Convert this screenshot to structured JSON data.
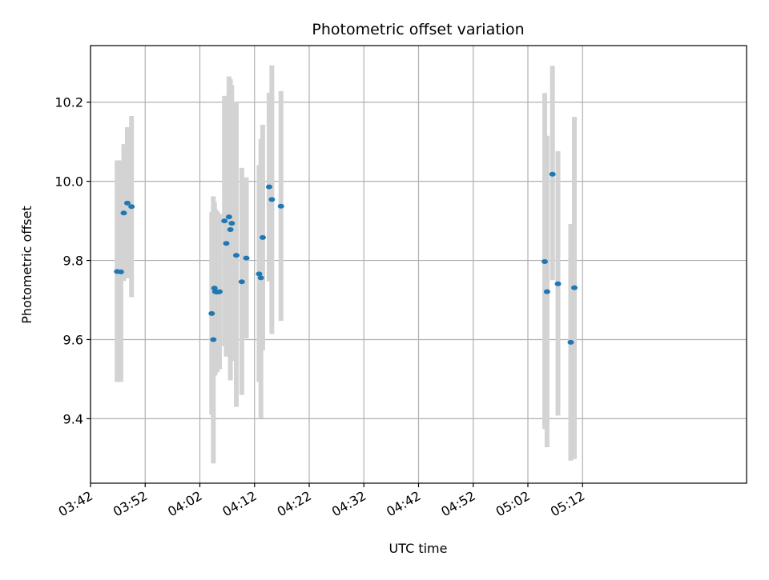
{
  "chart_data": {
    "type": "scatter",
    "title": "Photometric offset variation",
    "xlabel": "UTC time",
    "ylabel": "Photometric offset",
    "x_axis": {
      "type": "time",
      "range": [
        "03:42",
        "05:42"
      ],
      "ticks": [
        "03:42",
        "03:52",
        "04:02",
        "04:12",
        "04:22",
        "04:32",
        "04:42",
        "04:52",
        "05:02",
        "05:12"
      ]
    },
    "ylim": [
      9.237,
      10.343
    ],
    "y_ticks": [
      "9.4",
      "9.6",
      "9.8",
      "10.0",
      "10.2"
    ],
    "grid": true,
    "colors": {
      "marker": "#1f77b4",
      "errorbar": "#d3d3d3",
      "grid": "#b0b0b0"
    },
    "series": [
      {
        "points": [
          {
            "x": "03:46:52",
            "y": 9.772,
            "yerr_low": 9.493,
            "yerr_high": 10.053
          },
          {
            "x": "03:47:33",
            "y": 9.771,
            "yerr_low": 9.493,
            "yerr_high": 10.053
          },
          {
            "x": "03:48:05",
            "y": 9.92,
            "yerr_low": 9.748,
            "yerr_high": 10.094
          },
          {
            "x": "03:48:44",
            "y": 9.945,
            "yerr_low": 9.755,
            "yerr_high": 10.137
          },
          {
            "x": "03:49:30",
            "y": 9.936,
            "yerr_low": 9.707,
            "yerr_high": 10.165
          },
          {
            "x": "04:04:10",
            "y": 9.666,
            "yerr_low": 9.41,
            "yerr_high": 9.923
          },
          {
            "x": "04:04:28",
            "y": 9.6,
            "yerr_low": 9.287,
            "yerr_high": 9.962
          },
          {
            "x": "04:04:40",
            "y": 9.73,
            "yerr_low": 9.508,
            "yerr_high": 9.948
          },
          {
            "x": "04:04:50",
            "y": 9.721,
            "yerr_low": 9.512,
            "yerr_high": 9.93
          },
          {
            "x": "04:05:10",
            "y": 9.72,
            "yerr_low": 9.518,
            "yerr_high": 9.925
          },
          {
            "x": "04:05:35",
            "y": 9.721,
            "yerr_low": 9.525,
            "yerr_high": 9.918
          },
          {
            "x": "04:06:30",
            "y": 9.9,
            "yerr_low": 9.583,
            "yerr_high": 10.216
          },
          {
            "x": "04:06:50",
            "y": 9.843,
            "yerr_low": 9.557,
            "yerr_high": 10.13
          },
          {
            "x": "04:07:20",
            "y": 9.91,
            "yerr_low": 9.558,
            "yerr_high": 10.265
          },
          {
            "x": "04:07:35",
            "y": 9.878,
            "yerr_low": 9.497,
            "yerr_high": 10.258
          },
          {
            "x": "04:07:50",
            "y": 9.894,
            "yerr_low": 9.546,
            "yerr_high": 10.243
          },
          {
            "x": "04:08:40",
            "y": 9.813,
            "yerr_low": 9.43,
            "yerr_high": 10.201
          },
          {
            "x": "04:09:40",
            "y": 9.746,
            "yerr_low": 9.46,
            "yerr_high": 10.034
          },
          {
            "x": "04:10:30",
            "y": 9.806,
            "yerr_low": 9.603,
            "yerr_high": 10.01
          },
          {
            "x": "04:12:50",
            "y": 9.766,
            "yerr_low": 9.493,
            "yerr_high": 10.041
          },
          {
            "x": "04:13:10",
            "y": 9.756,
            "yerr_low": 9.402,
            "yerr_high": 10.107
          },
          {
            "x": "04:13:30",
            "y": 9.858,
            "yerr_low": 9.573,
            "yerr_high": 10.143
          },
          {
            "x": "04:14:40",
            "y": 9.986,
            "yerr_low": 9.747,
            "yerr_high": 10.224
          },
          {
            "x": "04:15:10",
            "y": 9.954,
            "yerr_low": 9.614,
            "yerr_high": 10.293
          },
          {
            "x": "04:16:50",
            "y": 9.937,
            "yerr_low": 9.647,
            "yerr_high": 10.228
          },
          {
            "x": "05:05:05",
            "y": 9.797,
            "yerr_low": 9.374,
            "yerr_high": 10.223
          },
          {
            "x": "05:05:30",
            "y": 9.721,
            "yerr_low": 9.328,
            "yerr_high": 10.115
          },
          {
            "x": "05:06:30",
            "y": 10.018,
            "yerr_low": 9.75,
            "yerr_high": 10.292
          },
          {
            "x": "05:07:30",
            "y": 9.741,
            "yerr_low": 9.408,
            "yerr_high": 10.076
          },
          {
            "x": "05:09:50",
            "y": 9.593,
            "yerr_low": 9.294,
            "yerr_high": 9.892
          },
          {
            "x": "05:10:30",
            "y": 9.731,
            "yerr_low": 9.298,
            "yerr_high": 10.163
          }
        ]
      }
    ]
  }
}
